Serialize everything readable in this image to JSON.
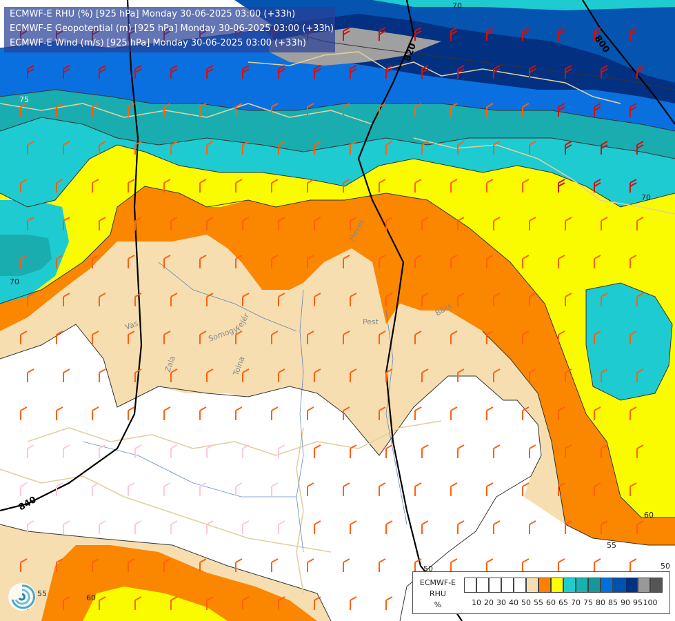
{
  "header": {
    "line1": "ECMWF-E RHU (%) [925 hPa] Monday 30-06-2025 03:00 (+33h)",
    "line2": "ECMWF-E Geopotential (m) [925 hPa] Monday 30-06-2025 03:00 (+33h)",
    "line3": "ECMWF-E Wind (m/s) [925 hPa] Monday 30-06-2025 03:00 (+33h)"
  },
  "geopotential_labels": [
    "800",
    "820",
    "840"
  ],
  "rhu_contour_labels": [
    "70",
    "75",
    "70",
    "70",
    "60",
    "55",
    "55",
    "60",
    "50",
    "50"
  ],
  "place_labels": [
    "Pest",
    "Heves",
    "Fejér",
    "Somogy",
    "Zala",
    "Tolna",
    "Vas",
    "Bács"
  ],
  "legend": {
    "name_line1": "ECMWF-E",
    "name_line2": "RHU",
    "unit": "%",
    "levels": [
      "10",
      "20",
      "30",
      "40",
      "50",
      "55",
      "60",
      "65",
      "70",
      "75",
      "80",
      "85",
      "90",
      "95",
      "100"
    ],
    "colors": [
      "#ffffff",
      "#ffffff",
      "#ffffff",
      "#ffffff",
      "#ffffff",
      "#f5deb3",
      "#ff8000",
      "#ffff00",
      "#20cccc",
      "#18b0b0",
      "#149898",
      "#0070e0",
      "#0050b0",
      "#003080",
      "#999999",
      "#555555"
    ]
  },
  "colors": {
    "rh_50_55": "#f6deb0",
    "rh_55_60": "#fb8600",
    "rh_60_65": "#fbfb00",
    "rh_65_70": "#1ecbd0",
    "rh_70_75": "#19adb0",
    "rh_75_80": "#0f97a3",
    "rh_80_85": "#0a70df",
    "rh_85_90": "#0454b0",
    "rh_90_95": "#033080",
    "rh_95_100": "#a0a0a0",
    "wind_strong": "#d01010",
    "wind_medium": "#ff6010",
    "wind_weak": "#ffc8d8",
    "border": "#e0d0a0"
  },
  "logo_icon": "ecmwf-logo-icon"
}
